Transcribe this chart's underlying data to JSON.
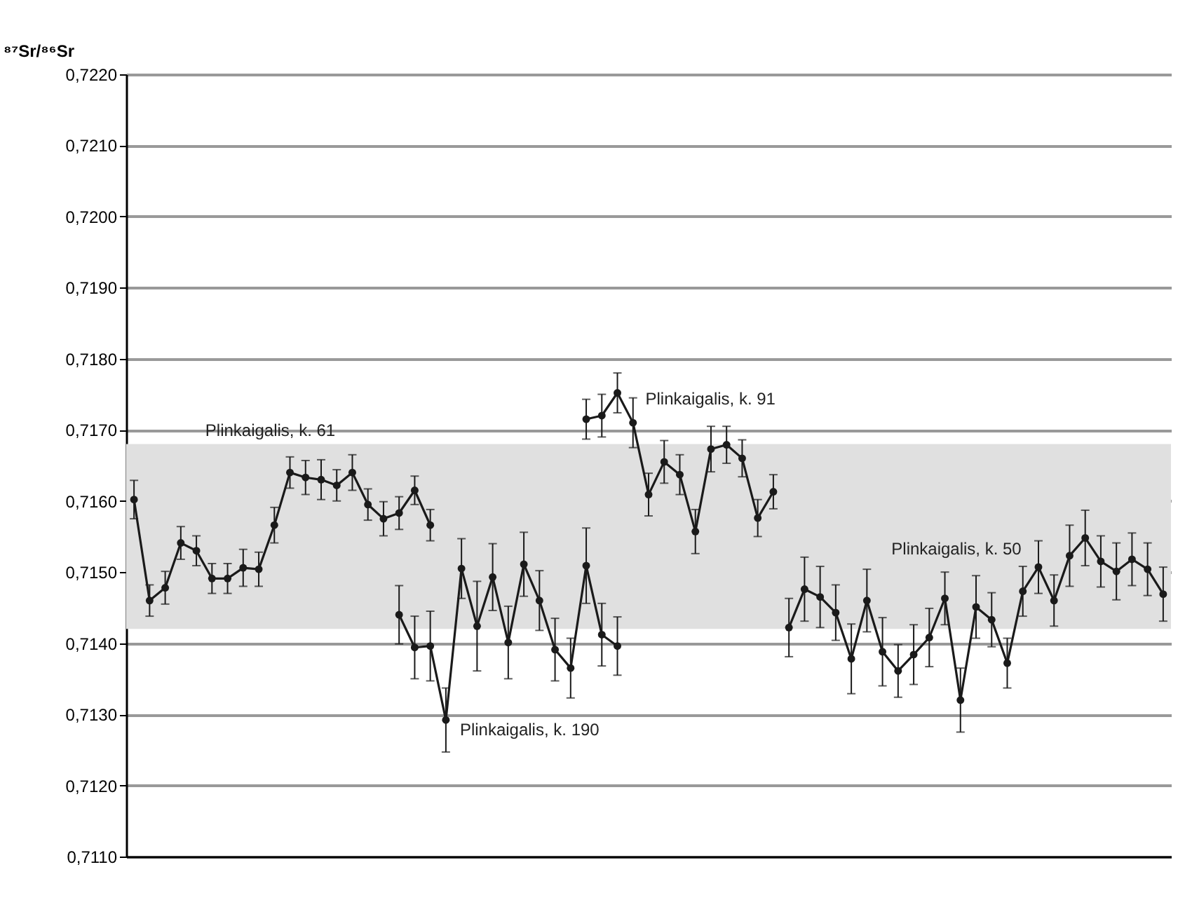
{
  "chart_data": {
    "type": "line",
    "ylabel": "⁸⁷Sr/⁸⁶Sr",
    "categories": [
      null,
      null,
      null,
      null,
      null,
      null,
      null,
      null,
      null,
      null,
      null,
      null,
      null,
      null,
      null,
      null,
      null,
      null,
      null,
      null,
      null,
      null,
      null,
      null,
      null,
      null,
      null,
      null,
      null,
      null,
      null,
      null,
      null,
      null,
      null,
      null,
      null,
      null,
      null,
      null,
      null,
      null,
      null,
      null,
      null,
      null,
      null,
      null,
      null,
      null,
      null,
      null,
      null,
      null,
      null,
      null,
      null,
      null,
      null,
      null,
      null,
      null,
      null,
      null,
      null,
      null,
      null
    ],
    "series": [
      {
        "name": "Plinkaigalis, k. 61",
        "color": "#1a1a1a",
        "values": [
          0.71602,
          0.7146,
          0.71478,
          0.71541,
          0.7153,
          0.71491,
          0.71491,
          0.71506,
          0.71504,
          0.71566,
          0.7164,
          0.71633,
          0.7163,
          0.71622,
          0.7164,
          0.71595,
          0.71575,
          0.71583,
          0.71615,
          0.71566,
          null,
          null,
          null,
          null,
          null,
          null,
          null,
          null,
          null,
          null,
          null,
          null,
          null,
          null,
          null,
          null,
          null,
          null,
          null,
          null,
          null,
          null,
          null,
          null,
          null,
          null,
          null,
          null,
          null,
          null,
          null,
          null,
          null,
          null,
          null,
          null,
          null,
          null,
          null,
          null,
          null,
          null,
          null,
          null,
          null,
          null,
          null
        ],
        "errors": [
          0.00027,
          0.00022,
          0.00023,
          0.00023,
          0.00021,
          0.00021,
          0.00021,
          0.00026,
          0.00024,
          0.00025,
          0.00022,
          0.00024,
          0.00028,
          0.00022,
          0.00025,
          0.00022,
          0.00024,
          0.00023,
          0.0002,
          0.00022,
          null,
          null,
          null,
          null,
          null,
          null,
          null,
          null,
          null,
          null,
          null,
          null,
          null,
          null,
          null,
          null,
          null,
          null,
          null,
          null,
          null,
          null,
          null,
          null,
          null,
          null,
          null,
          null,
          null,
          null,
          null,
          null,
          null,
          null,
          null,
          null,
          null,
          null,
          null,
          null,
          null,
          null,
          null,
          null,
          null,
          null,
          null
        ]
      },
      {
        "name": "Plinkaigalis, k. 190",
        "color": "#1a1a1a",
        "values": [
          null,
          null,
          null,
          null,
          null,
          null,
          null,
          null,
          null,
          null,
          null,
          null,
          null,
          null,
          null,
          null,
          null,
          0.7144,
          0.71394,
          0.71396,
          0.71292,
          0.71505,
          0.71424,
          0.71493,
          0.71401,
          0.71511,
          0.7146,
          0.71391,
          0.71365,
          0.71509,
          0.71412,
          0.71396,
          null,
          null,
          null,
          null,
          null,
          null,
          null,
          null,
          null,
          null,
          null,
          null,
          null,
          null,
          null,
          null,
          null,
          null,
          null,
          null,
          null,
          null,
          null,
          null,
          null,
          null,
          null,
          null,
          null,
          null,
          null,
          null,
          null,
          null,
          null
        ],
        "errors": [
          null,
          null,
          null,
          null,
          null,
          null,
          null,
          null,
          null,
          null,
          null,
          null,
          null,
          null,
          null,
          null,
          null,
          0.00041,
          0.00044,
          0.00049,
          0.00045,
          0.00042,
          0.00063,
          0.00047,
          0.00051,
          0.00045,
          0.00042,
          0.00044,
          0.00042,
          0.00053,
          0.00044,
          0.00041,
          null,
          null,
          null,
          null,
          null,
          null,
          null,
          null,
          null,
          null,
          null,
          null,
          null,
          null,
          null,
          null,
          null,
          null,
          null,
          null,
          null,
          null,
          null,
          null,
          null,
          null,
          null,
          null,
          null,
          null,
          null,
          null,
          null,
          null,
          null
        ]
      },
      {
        "name": "Plinkaigalis, k. 91",
        "color": "#1a1a1a",
        "values": [
          null,
          null,
          null,
          null,
          null,
          null,
          null,
          null,
          null,
          null,
          null,
          null,
          null,
          null,
          null,
          null,
          null,
          null,
          null,
          null,
          null,
          null,
          null,
          null,
          null,
          null,
          null,
          null,
          null,
          0.71715,
          0.7172,
          0.71752,
          0.7171,
          0.71609,
          0.71655,
          0.71637,
          0.71557,
          0.71673,
          0.71679,
          0.7166,
          0.71576,
          0.71613,
          null,
          null,
          null,
          null,
          null,
          null,
          null,
          null,
          null,
          null,
          null,
          null,
          null,
          null,
          null,
          null,
          null,
          null,
          null,
          null,
          null,
          null,
          null,
          null,
          null
        ],
        "errors": [
          null,
          null,
          null,
          null,
          null,
          null,
          null,
          null,
          null,
          null,
          null,
          null,
          null,
          null,
          null,
          null,
          null,
          null,
          null,
          null,
          null,
          null,
          null,
          null,
          null,
          null,
          null,
          null,
          null,
          0.00028,
          0.0003,
          0.00028,
          0.00035,
          0.0003,
          0.0003,
          0.00028,
          0.00031,
          0.00032,
          0.00026,
          0.00026,
          0.00026,
          0.00024,
          null,
          null,
          null,
          null,
          null,
          null,
          null,
          null,
          null,
          null,
          null,
          null,
          null,
          null,
          null,
          null,
          null,
          null,
          null,
          null,
          null,
          null,
          null,
          null,
          null
        ]
      },
      {
        "name": "Plinkaigalis, k. 50",
        "color": "#1a1a1a",
        "values": [
          null,
          null,
          null,
          null,
          null,
          null,
          null,
          null,
          null,
          null,
          null,
          null,
          null,
          null,
          null,
          null,
          null,
          null,
          null,
          null,
          null,
          null,
          null,
          null,
          null,
          null,
          null,
          null,
          null,
          null,
          null,
          null,
          null,
          null,
          null,
          null,
          null,
          null,
          null,
          null,
          null,
          null,
          0.71422,
          0.71476,
          0.71465,
          0.71443,
          0.71378,
          0.7146,
          0.71388,
          0.71361,
          0.71384,
          0.71408,
          0.71463,
          0.7132,
          0.71451,
          0.71433,
          0.71372,
          0.71473,
          0.71507,
          0.7146,
          0.71523,
          0.71548,
          0.71515,
          0.71501,
          0.71518,
          0.71504,
          0.71469
        ],
        "errors": [
          null,
          null,
          null,
          null,
          null,
          null,
          null,
          null,
          null,
          null,
          null,
          null,
          null,
          null,
          null,
          null,
          null,
          null,
          null,
          null,
          null,
          null,
          null,
          null,
          null,
          null,
          null,
          null,
          null,
          null,
          null,
          null,
          null,
          null,
          null,
          null,
          null,
          null,
          null,
          null,
          null,
          null,
          0.00041,
          0.00045,
          0.00043,
          0.00039,
          0.00049,
          0.00044,
          0.00048,
          0.00037,
          0.00042,
          0.00041,
          0.00037,
          0.00045,
          0.00044,
          0.00038,
          0.00035,
          0.00035,
          0.00037,
          0.00036,
          0.00043,
          0.00039,
          0.00036,
          0.0004,
          0.00037,
          0.00037,
          0.00038
        ]
      }
    ],
    "ylim": [
      0.711,
      0.722
    ],
    "yticks": [
      {
        "value": 0.711,
        "label": "0,7110"
      },
      {
        "value": 0.712,
        "label": "0,7120"
      },
      {
        "value": 0.713,
        "label": "0,7130"
      },
      {
        "value": 0.714,
        "label": "0,7140"
      },
      {
        "value": 0.715,
        "label": "0,7150"
      },
      {
        "value": 0.716,
        "label": "0,7160"
      },
      {
        "value": 0.717,
        "label": "0,7170"
      },
      {
        "value": 0.718,
        "label": "0,7180"
      },
      {
        "value": 0.719,
        "label": "0,7190"
      },
      {
        "value": 0.72,
        "label": "0,7200"
      },
      {
        "value": 0.721,
        "label": "0,7210"
      },
      {
        "value": 0.722,
        "label": "0,7220"
      }
    ],
    "bands": [
      {
        "axis": "y",
        "from": 0.7142,
        "to": 0.7168,
        "color": "#e0e0e0"
      }
    ],
    "grid": "y",
    "tick_labels": "y",
    "marker": "circle",
    "line_style": "solid"
  }
}
